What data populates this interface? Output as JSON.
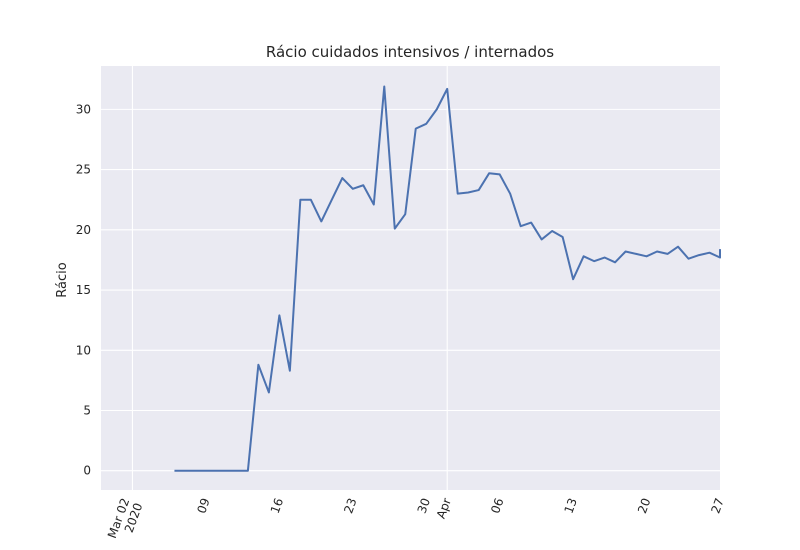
{
  "chart_data": {
    "type": "line",
    "title": "Rácio cuidados intensivos / internados",
    "xlabel": "",
    "ylabel": "Rácio",
    "x_tick_labels": [
      "Mar 02\n2020",
      "09",
      "16",
      "23",
      "30",
      "Apr",
      "06",
      "13",
      "20",
      "27"
    ],
    "y_ticks": [
      0,
      5,
      10,
      15,
      20,
      25,
      30
    ],
    "ylim": [
      -1.6,
      33.6
    ],
    "xlim": [
      "2020-02-28",
      "2020-04-27"
    ],
    "grid": true,
    "background": "#eaeaf2",
    "line_color": "#4c72b0",
    "series": [
      {
        "x": [
          "2020-03-06",
          "2020-03-07",
          "2020-03-08",
          "2020-03-09",
          "2020-03-10",
          "2020-03-11",
          "2020-03-12",
          "2020-03-13",
          "2020-03-14",
          "2020-03-15",
          "2020-03-16",
          "2020-03-17",
          "2020-03-18",
          "2020-03-19",
          "2020-03-20",
          "2020-03-21",
          "2020-03-22",
          "2020-03-23",
          "2020-03-24",
          "2020-03-25",
          "2020-03-26",
          "2020-03-27",
          "2020-03-28",
          "2020-03-29",
          "2020-03-30",
          "2020-03-31",
          "2020-04-01",
          "2020-04-02",
          "2020-04-03",
          "2020-04-04",
          "2020-04-05",
          "2020-04-06",
          "2020-04-07",
          "2020-04-08",
          "2020-04-09",
          "2020-04-10",
          "2020-04-11",
          "2020-04-12",
          "2020-04-13",
          "2020-04-14",
          "2020-04-15",
          "2020-04-16",
          "2020-04-17",
          "2020-04-18",
          "2020-04-19",
          "2020-04-20",
          "2020-04-21",
          "2020-04-22",
          "2020-04-23",
          "2020-04-24",
          "2020-04-25",
          "2020-04-26",
          "2020-04-27",
          "2020-04-28"
        ],
        "values": [
          0,
          0,
          0,
          0,
          0,
          0,
          0,
          0,
          8.8,
          6.5,
          12.9,
          8.3,
          22.5,
          22.5,
          20.7,
          22.5,
          24.3,
          23.4,
          23.7,
          22.1,
          31.9,
          20.1,
          21.3,
          28.4,
          28.8,
          30.0,
          31.7,
          23.0,
          23.1,
          23.3,
          24.7,
          24.6,
          23.0,
          20.3,
          20.6,
          19.2,
          19.9,
          19.4,
          15.9,
          17.8,
          17.4,
          17.7,
          17.3,
          18.2,
          18.0,
          17.8,
          18.2,
          18.0,
          18.6,
          17.6,
          17.9,
          18.1,
          17.7,
          18.4
        ]
      }
    ]
  }
}
